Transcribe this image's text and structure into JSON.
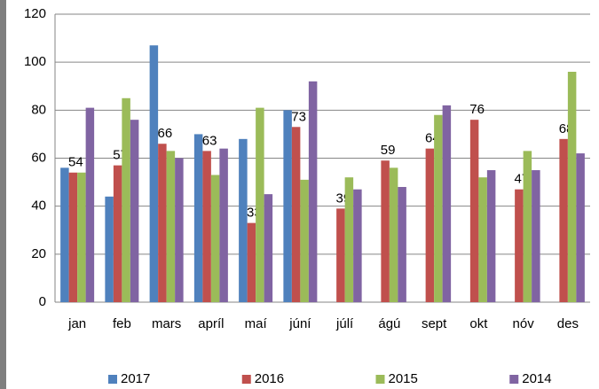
{
  "chart_data": {
    "type": "bar",
    "categories": [
      "jan",
      "feb",
      "mars",
      "apríl",
      "maí",
      "júní",
      "júlí",
      "ágú",
      "sept",
      "okt",
      "nóv",
      "des"
    ],
    "series": [
      {
        "name": "2017",
        "color": "#4f81bd",
        "values": [
          56,
          44,
          107,
          70,
          68,
          80,
          null,
          null,
          null,
          null,
          null,
          null
        ]
      },
      {
        "name": "2016",
        "color": "#c0504d",
        "show_labels": true,
        "values": [
          54,
          57,
          66,
          63,
          33,
          73,
          39,
          59,
          64,
          76,
          47,
          68
        ]
      },
      {
        "name": "2015",
        "color": "#9bbb59",
        "values": [
          54,
          85,
          63,
          53,
          81,
          51,
          52,
          56,
          78,
          52,
          63,
          96
        ]
      },
      {
        "name": "2014",
        "color": "#8064a2",
        "values": [
          81,
          76,
          60,
          64,
          45,
          92,
          47,
          48,
          82,
          55,
          55,
          62
        ]
      }
    ],
    "ylim": [
      0,
      120
    ],
    "yticks": [
      0,
      20,
      40,
      60,
      80,
      100,
      120
    ],
    "grid": true,
    "legend": "bottom"
  }
}
